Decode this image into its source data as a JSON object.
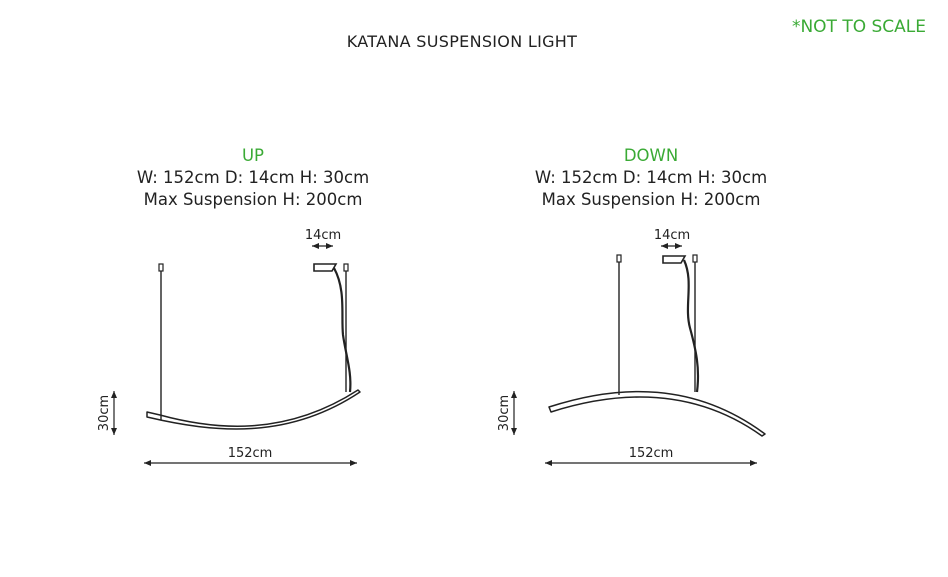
{
  "title": "KATANA SUSPENSION LIGHT",
  "note": "*NOT TO SCALE",
  "colors": {
    "accent": "#3aaa35",
    "line": "#222222"
  },
  "views": [
    {
      "mode": "UP",
      "dims": "W: 152cm D: 14cm H: 30cm",
      "suspension": "Max Suspension H: 200cm",
      "depth_label": "14cm",
      "height_label": "30cm",
      "width_label": "152cm"
    },
    {
      "mode": "DOWN",
      "dims": "W: 152cm D: 14cm H: 30cm",
      "suspension": "Max Suspension H: 200cm",
      "depth_label": "14cm",
      "height_label": "30cm",
      "width_label": "152cm"
    }
  ]
}
